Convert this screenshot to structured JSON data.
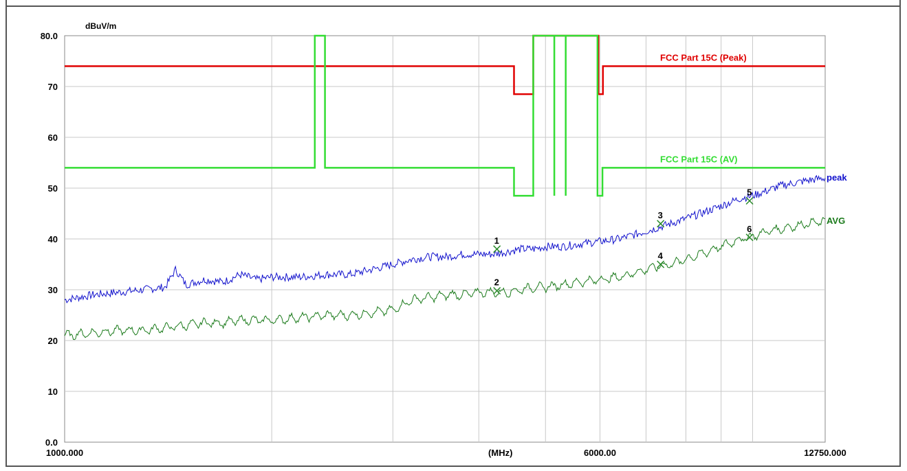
{
  "chart_data": {
    "type": "line",
    "xscale": "log",
    "xlim": [
      1000,
      12750
    ],
    "ylim": [
      0,
      80
    ],
    "grid": true,
    "y_unit": "dBuV/m",
    "x_unit": "(MHz)",
    "y_ticks": [
      "80.0",
      "70",
      "60",
      "50",
      "40",
      "30",
      "20",
      "10",
      "0.0"
    ],
    "x_tick_labels": [
      {
        "label": "1000.000",
        "x": 1000
      },
      {
        "label": "(MHz)",
        "x": 4300
      },
      {
        "label": "6000.00",
        "x": 6000
      },
      {
        "label": "12750.000",
        "x": 12750
      }
    ],
    "limit_lines": [
      {
        "name": "FCC Part 15C (Peak)",
        "color": "#e00000",
        "points": [
          [
            1000,
            74
          ],
          [
            4500,
            74
          ],
          [
            4500,
            68.5
          ],
          [
            4800,
            68.5
          ],
          [
            4800,
            80
          ],
          [
            5970,
            80
          ],
          [
            5970,
            68.5
          ],
          [
            6060,
            68.5
          ],
          [
            6060,
            74
          ],
          [
            12750,
            74
          ]
        ]
      },
      {
        "name": "FCC Part 15C (AV)",
        "color": "#33dd33",
        "points": [
          [
            1000,
            54
          ],
          [
            2310,
            54
          ],
          [
            2310,
            80
          ],
          [
            2390,
            80
          ],
          [
            2390,
            54
          ],
          [
            4500,
            54
          ],
          [
            4500,
            48.5
          ],
          [
            4800,
            48.5
          ],
          [
            4800,
            80
          ],
          [
            5150,
            80
          ],
          [
            5150,
            48.5
          ],
          [
            5150,
            80
          ],
          [
            5350,
            80
          ],
          [
            5350,
            48.5
          ],
          [
            5350,
            80
          ],
          [
            5950,
            80
          ],
          [
            5950,
            48.5
          ],
          [
            6050,
            48.5
          ],
          [
            6050,
            54
          ],
          [
            12750,
            54
          ]
        ]
      }
    ],
    "series": [
      {
        "name": "peak",
        "color": "#1010cc",
        "x": [
          1000,
          1100,
          1200,
          1300,
          1400,
          1450,
          1500,
          1600,
          1700,
          1800,
          1900,
          2000,
          2200,
          2400,
          2600,
          2800,
          3000,
          3200,
          3400,
          3600,
          3800,
          4000,
          4200,
          4400,
          4600,
          4800,
          5000,
          5300,
          5600,
          6000,
          6400,
          6800,
          7200,
          7600,
          8000,
          8400,
          8800,
          9200,
          9600,
          10000,
          10500,
          11000,
          11500,
          12000,
          12750
        ],
        "y": [
          28,
          29,
          29.5,
          30,
          30.5,
          34,
          31,
          32,
          31.5,
          33,
          32,
          32.5,
          32.5,
          33,
          33,
          34,
          35,
          36,
          36.5,
          36.5,
          37,
          37,
          37,
          37.5,
          38,
          38,
          38.5,
          38.5,
          39,
          39.5,
          40,
          41,
          42,
          43,
          44,
          45,
          46,
          47,
          48,
          48.5,
          49.5,
          50.5,
          51,
          51.5,
          52
        ]
      },
      {
        "name": "AVG",
        "color": "#1a7a1a",
        "x": [
          1000,
          1100,
          1200,
          1300,
          1400,
          1500,
          1600,
          1700,
          1800,
          1900,
          2000,
          2200,
          2400,
          2600,
          2800,
          3000,
          3200,
          3400,
          3600,
          3800,
          4000,
          4200,
          4400,
          4600,
          4800,
          5000,
          5300,
          5600,
          6000,
          6400,
          6800,
          7200,
          7600,
          8000,
          8400,
          8800,
          9200,
          9600,
          10000,
          10500,
          11000,
          11500,
          12000,
          12750
        ],
        "y": [
          21,
          21.5,
          22,
          22,
          22.5,
          23,
          23.5,
          23.5,
          24,
          24,
          24,
          24.5,
          25,
          25,
          25.5,
          26,
          28,
          28.5,
          29,
          29,
          29.5,
          29.5,
          29.5,
          30,
          30.5,
          30.5,
          31,
          31.5,
          32,
          32.5,
          33.5,
          34.5,
          35,
          36,
          37,
          38,
          39,
          40,
          40.5,
          41.5,
          42,
          42.5,
          43,
          43.5
        ]
      }
    ],
    "markers": [
      {
        "label": "1",
        "x": 4250,
        "y": 38.0
      },
      {
        "label": "2",
        "x": 4250,
        "y": 29.8
      },
      {
        "label": "3",
        "x": 7350,
        "y": 43.0
      },
      {
        "label": "4",
        "x": 7350,
        "y": 35.0
      },
      {
        "label": "5",
        "x": 9900,
        "y": 47.5
      },
      {
        "label": "6",
        "x": 9900,
        "y": 40.3
      }
    ]
  }
}
